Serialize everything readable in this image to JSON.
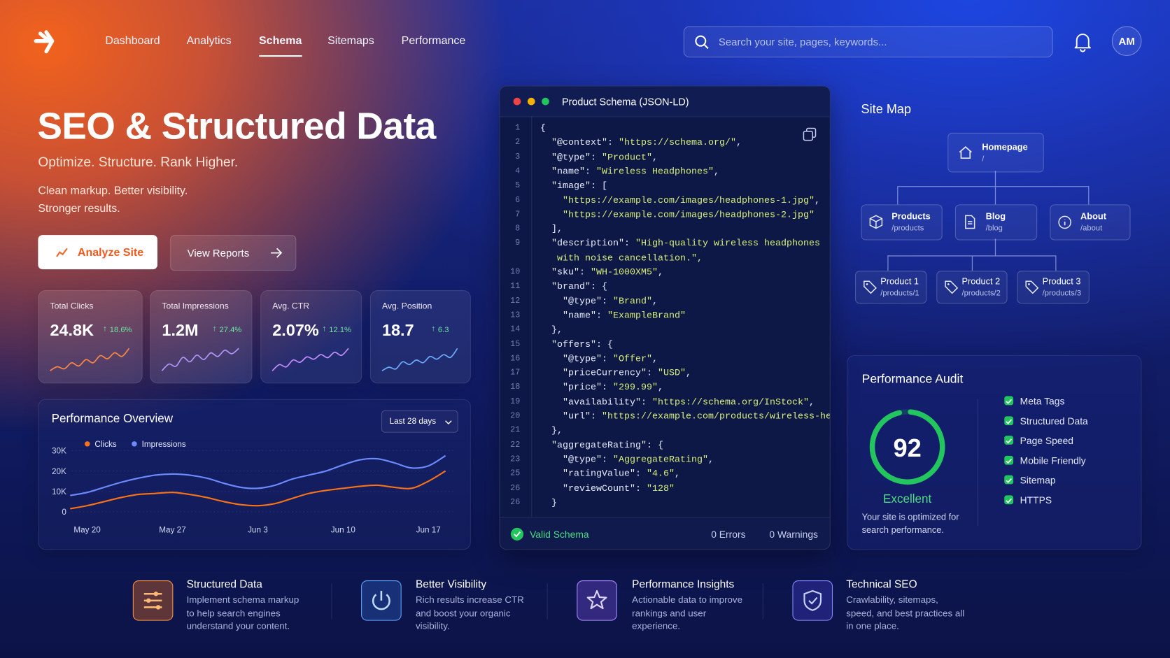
{
  "nav": {
    "items": [
      "Dashboard",
      "Analytics",
      "Schema",
      "Sitemaps",
      "Performance"
    ],
    "search_placeholder": "Search your site, pages, keywords...",
    "avatar": "AM"
  },
  "hero": {
    "title": "SEO & Structured Data",
    "subtitle": "Optimize. Structure. Rank Higher.",
    "description": "Clean markup. Better visibility. Stronger results.",
    "primary_button": "Analyze Site",
    "secondary_button": "View Reports"
  },
  "stats": [
    {
      "label": "Total Clicks",
      "value": "24.8K",
      "change": "18.6%",
      "color": "#fb7a2e",
      "trend": [
        3,
        4,
        3.5,
        5,
        4.2,
        5.8,
        5,
        6.8,
        6,
        7.5,
        6.6,
        8.6
      ]
    },
    {
      "label": "Total Impressions",
      "value": "1.2M",
      "change": "27.4%",
      "color": "#a78bfa",
      "trend": [
        3,
        4.5,
        4,
        6,
        5,
        6.5,
        5.5,
        7,
        6.2,
        7.6,
        6.8,
        8
      ]
    },
    {
      "label": "Avg. CTR",
      "value": "2.07%",
      "change": "12.1%",
      "color": "#c084fc",
      "trend": [
        3,
        4.6,
        4,
        5.8,
        5.2,
        6.6,
        6,
        7.2,
        6.4,
        7.8,
        7,
        8.8
      ]
    },
    {
      "label": "Avg. Position",
      "value": "18.7",
      "change": "6.3",
      "color": "#60a5fa",
      "trend": [
        3,
        3.8,
        3.4,
        5,
        4.4,
        5.4,
        4.8,
        6.2,
        5.6,
        6.6,
        6,
        8
      ]
    }
  ],
  "chart_data": {
    "type": "line",
    "title": "Performance Overview",
    "range_selector": "Last 28 days",
    "categories": [
      null,
      "May 20",
      null,
      null,
      null,
      null,
      "May 27",
      null,
      null,
      null,
      null,
      "Jun 3",
      null,
      null,
      null,
      null,
      "Jun 10",
      null,
      null,
      null,
      null,
      "Jun 17",
      null
    ],
    "series": [
      {
        "name": "Clicks",
        "color": "#f97316",
        "values": [
          1500,
          3000,
          5000,
          7000,
          8500,
          9000,
          9500,
          8500,
          7000,
          5000,
          3500,
          3000,
          4000,
          6500,
          9000,
          10500,
          11500,
          12500,
          13000,
          12000,
          11500,
          15000,
          20000
        ]
      },
      {
        "name": "Impressions",
        "color": "#6d8bff",
        "values": [
          8000,
          9500,
          12000,
          14500,
          16500,
          18000,
          18500,
          18000,
          16500,
          14000,
          12000,
          11500,
          13000,
          16000,
          18000,
          20000,
          23000,
          25500,
          26000,
          24000,
          21500,
          22500,
          27500
        ]
      }
    ],
    "ylim": [
      0,
      30000
    ],
    "yticks": [
      0,
      {
        "value": 10000,
        "label": "10K"
      },
      {
        "value": 20000,
        "label": "20K"
      },
      {
        "value": 30000,
        "label": "30K"
      }
    ]
  },
  "schema_editor": {
    "title": "Product Schema (JSON-LD)",
    "lines": [
      {
        "line": 1,
        "text": "{"
      },
      {
        "line": 2,
        "text": "  \"@context\": \"https://schema.org/\","
      },
      {
        "line": 3,
        "text": "  \"@type\": \"Product\","
      },
      {
        "line": 4,
        "text": "  \"name\": \"Wireless Headphones\","
      },
      {
        "line": 5,
        "text": "  \"image\": ["
      },
      {
        "line": 6,
        "text": "    \"https://example.com/images/headphones-1.jpg\","
      },
      {
        "line": 7,
        "text": "    \"https://example.com/images/headphones-2.jpg\""
      },
      {
        "line": 8,
        "text": "  ],"
      },
      {
        "line": 9,
        "text": "  \"description\": \"High-quality wireless headphones"
      },
      {
        "line": null,
        "text": "   with noise cancellation.\","
      },
      {
        "line": 10,
        "text": "  \"sku\": \"WH-1000XM5\","
      },
      {
        "line": 11,
        "text": "  \"brand\": {"
      },
      {
        "line": 12,
        "text": "    \"@type\": \"Brand\","
      },
      {
        "line": 13,
        "text": "    \"name\": \"ExampleBrand\""
      },
      {
        "line": 14,
        "text": "  },"
      },
      {
        "line": 15,
        "text": "  \"offers\": {"
      },
      {
        "line": 16,
        "text": "    \"@type\": \"Offer\","
      },
      {
        "line": 17,
        "text": "    \"priceCurrency\": \"USD\","
      },
      {
        "line": 18,
        "text": "    \"price\": \"299.99\","
      },
      {
        "line": 19,
        "text": "    \"availability\": \"https://schema.org/InStock\","
      },
      {
        "line": 20,
        "text": "    \"url\": \"https://example.com/products/wireless-headphones\""
      },
      {
        "line": 21,
        "text": "  },"
      },
      {
        "line": 22,
        "text": "  \"aggregateRating\": {"
      },
      {
        "line": 23,
        "text": "    \"@type\": \"AggregateRating\","
      },
      {
        "line": 25,
        "text": "    \"ratingValue\": \"4.6\","
      },
      {
        "line": 26,
        "text": "    \"reviewCount\": \"128\""
      },
      {
        "line": 26,
        "text": "  }"
      }
    ],
    "status": "Valid Schema",
    "errors": "0 Errors",
    "warnings": "0 Warnings"
  },
  "site_map": {
    "title": "Site Map",
    "nodes": [
      {
        "label": "Homepage",
        "path": "/"
      },
      {
        "label": "Products",
        "path": "/products"
      },
      {
        "label": "Blog",
        "path": "/blog"
      },
      {
        "label": "About",
        "path": "/about"
      },
      {
        "label": "Product 1",
        "path": "/products/1"
      },
      {
        "label": "Product 2",
        "path": "/products/2"
      },
      {
        "label": "Product 3",
        "path": "/products/3"
      }
    ]
  },
  "audit": {
    "title": "Performance Audit",
    "score": 92,
    "rating": "Excellent",
    "note": "Your site is optimized for search performance.",
    "checks": [
      "Meta Tags",
      "Structured Data",
      "Page Speed",
      "Mobile Friendly",
      "Sitemap",
      "HTTPS"
    ]
  },
  "features": [
    {
      "title": "Structured Data",
      "description": "Implement schema markup to help search engines understand your content."
    },
    {
      "title": "Better Visibility",
      "description": "Rich results increase CTR and boost your organic visibility."
    },
    {
      "title": "Performance Insights",
      "description": "Actionable data to improve rankings and user experience."
    },
    {
      "title": "Technical SEO",
      "description": "Crawlability, sitemaps, speed, and best practices all in one place."
    }
  ]
}
